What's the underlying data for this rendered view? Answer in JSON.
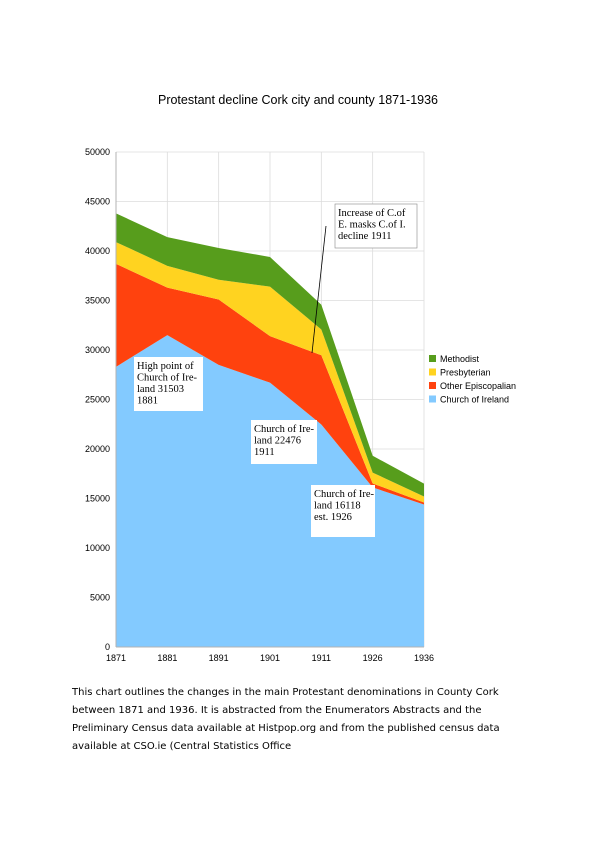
{
  "chart_data": {
    "type": "area",
    "stacked": true,
    "title": "Protestant decline Cork city and county 1871-1936",
    "xlabel": "",
    "ylabel": "",
    "x": [
      "1871",
      "1881",
      "1891",
      "1901",
      "1911",
      "1926",
      "1936"
    ],
    "ylim": [
      0,
      50000
    ],
    "yticks": [
      0,
      5000,
      10000,
      15000,
      20000,
      25000,
      30000,
      35000,
      40000,
      45000,
      50000
    ],
    "grid": true,
    "legend_position": "right",
    "series": [
      {
        "name": "Church of Ireland",
        "color": "#83caff",
        "values": [
          28300,
          31503,
          28500,
          26700,
          22476,
          16118,
          14400
        ]
      },
      {
        "name": "Other Episcopalian",
        "color": "#ff420e",
        "values": [
          10400,
          4800,
          6600,
          4700,
          7000,
          400,
          200
        ]
      },
      {
        "name": "Presbyterian",
        "color": "#ffd320",
        "values": [
          2200,
          2200,
          2000,
          5000,
          2600,
          1100,
          600
        ]
      },
      {
        "name": "Methodist",
        "color": "#579d1c",
        "values": [
          2900,
          2900,
          3200,
          3000,
          2500,
          1700,
          1300
        ]
      }
    ],
    "annotations": [
      {
        "lines": [
          "High point of",
          "Church of Ire-",
          "land 31503",
          "1881"
        ]
      },
      {
        "lines": [
          "Church of Ire-",
          "land 22476",
          "1911"
        ]
      },
      {
        "lines": [
          "Church of Ire-",
          "land 16118",
          "est. 1926"
        ]
      },
      {
        "lines": [
          "Increase of C.of",
          "E. masks C.of I.",
          "decline 1911"
        ]
      }
    ]
  },
  "caption": "This chart outlines the changes in the main Protestant denominations in County Cork between 1871 and 1936. It is abstracted from the Enumerators Abstracts and the Preliminary Census data available at Histpop.org and from the published census data available at CSO.ie (Central Statistics Office"
}
